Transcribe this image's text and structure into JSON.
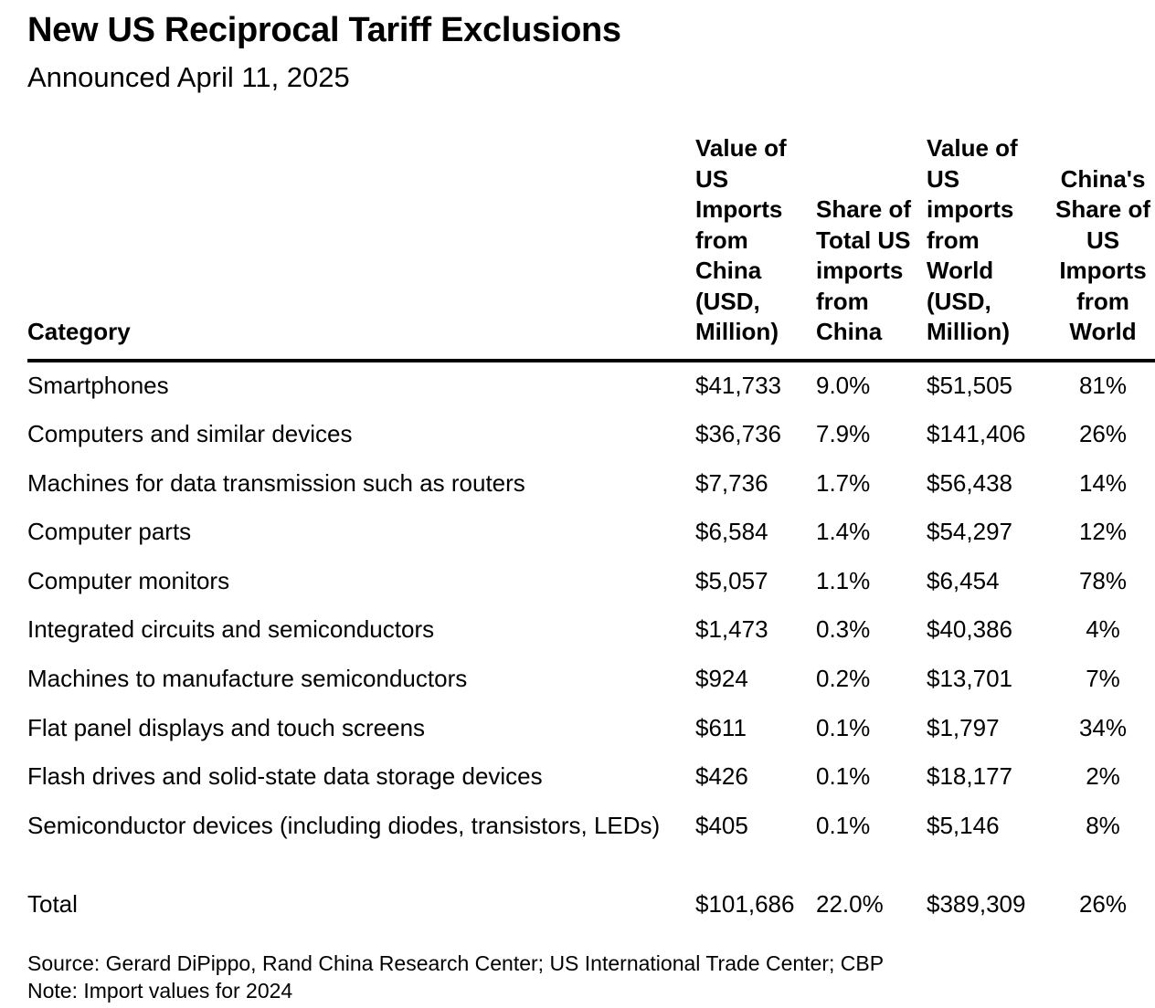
{
  "title": "New US Reciprocal Tariff Exclusions",
  "subtitle": "Announced April 11, 2025",
  "chart_data": {
    "type": "table",
    "columns": [
      "Category",
      "Value of US Imports from China (USD, Million)",
      "Share of Total US imports from China",
      "Value of US imports from World (USD, Million)",
      "China's Share of US Imports from World"
    ],
    "rows": [
      {
        "category": "Smartphones",
        "china_value": "$41,733",
        "china_share": "9.0%",
        "world_value": "$51,505",
        "world_share": "81%"
      },
      {
        "category": "Computers and similar devices",
        "china_value": "$36,736",
        "china_share": "7.9%",
        "world_value": "$141,406",
        "world_share": "26%"
      },
      {
        "category": "Machines for data transmission such as routers",
        "china_value": "$7,736",
        "china_share": "1.7%",
        "world_value": "$56,438",
        "world_share": "14%"
      },
      {
        "category": "Computer parts",
        "china_value": "$6,584",
        "china_share": "1.4%",
        "world_value": "$54,297",
        "world_share": "12%"
      },
      {
        "category": "Computer monitors",
        "china_value": "$5,057",
        "china_share": "1.1%",
        "world_value": "$6,454",
        "world_share": "78%"
      },
      {
        "category": "Integrated circuits and semiconductors",
        "china_value": "$1,473",
        "china_share": "0.3%",
        "world_value": "$40,386",
        "world_share": "4%"
      },
      {
        "category": "Machines to manufacture semiconductors",
        "china_value": "$924",
        "china_share": "0.2%",
        "world_value": "$13,701",
        "world_share": "7%"
      },
      {
        "category": "Flat panel displays and touch screens",
        "china_value": "$611",
        "china_share": "0.1%",
        "world_value": "$1,797",
        "world_share": "34%"
      },
      {
        "category": "Flash drives and solid-state data storage devices",
        "china_value": "$426",
        "china_share": "0.1%",
        "world_value": "$18,177",
        "world_share": "2%"
      },
      {
        "category": "Semiconductor devices (including diodes, transistors, LEDs)",
        "china_value": "$405",
        "china_share": "0.1%",
        "world_value": "$5,146",
        "world_share": "8%"
      },
      {
        "category": "Total",
        "china_value": "$101,686",
        "china_share": "22.0%",
        "world_value": "$389,309",
        "world_share": "26%"
      }
    ]
  },
  "footer": {
    "source": "Source: Gerard DiPippo, Rand China Research Center; US International Trade Center; CBP",
    "note": "Note: Import values for 2024"
  }
}
